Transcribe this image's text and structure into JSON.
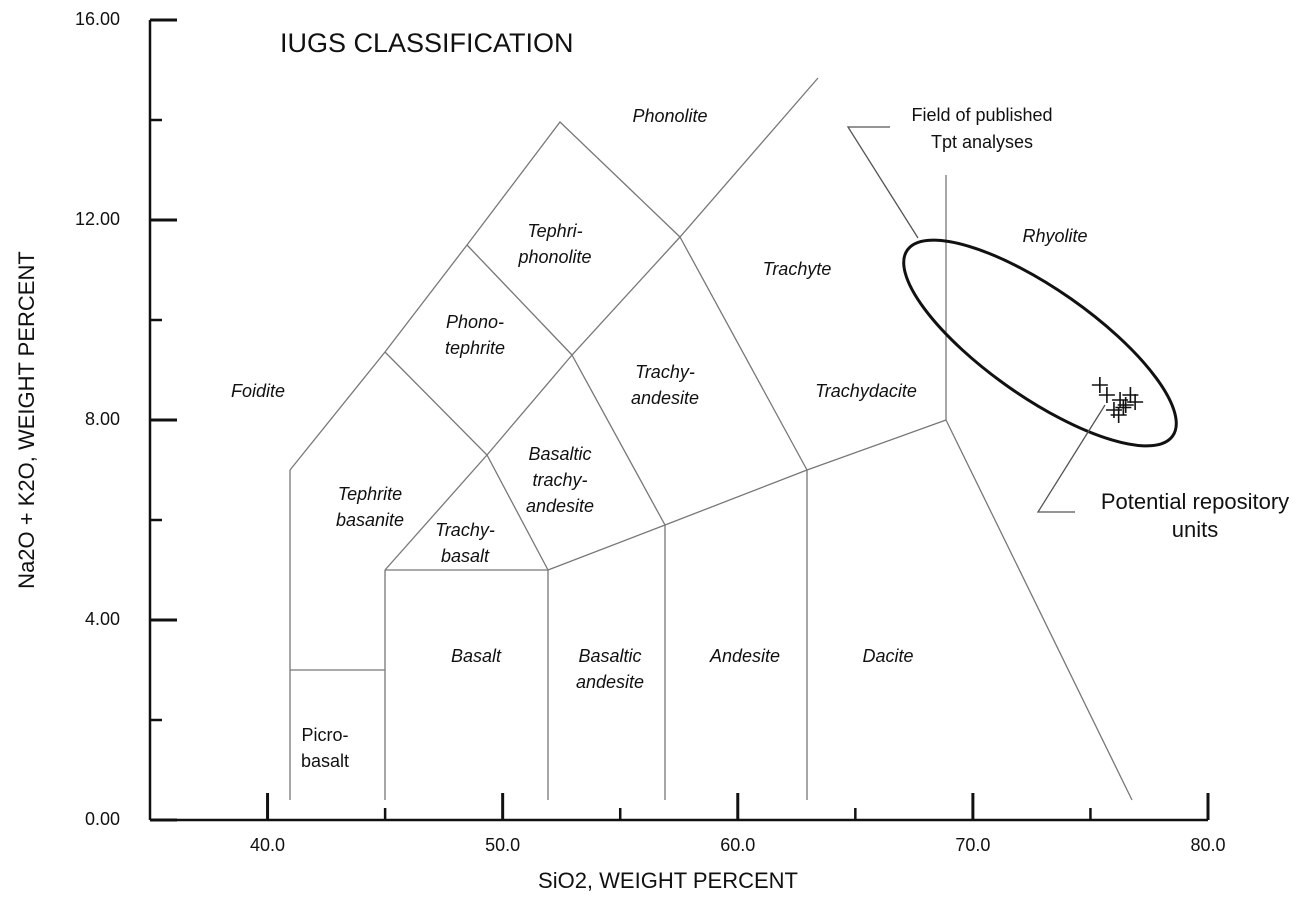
{
  "chart_data": {
    "type": "scatter",
    "title": "IUGS CLASSIFICATION",
    "x_label": "SiO2, WEIGHT PERCENT",
    "y_label": "Na2O + K2O, WEIGHT PERCENT",
    "xlim": [
      35,
      80
    ],
    "ylim": [
      0,
      16
    ],
    "xticks": [
      {
        "value": 40,
        "label": "40.0"
      },
      {
        "value": 50,
        "label": "50.0"
      },
      {
        "value": 60,
        "label": "60.0"
      },
      {
        "value": 70,
        "label": "70.0"
      },
      {
        "value": 80,
        "label": "80.0"
      }
    ],
    "xminor": [
      45,
      55,
      65,
      75
    ],
    "yticks": [
      {
        "value": 0,
        "label": "0.00"
      },
      {
        "value": 4,
        "label": "4.00"
      },
      {
        "value": 8,
        "label": "8.00"
      },
      {
        "value": 12,
        "label": "12.00"
      },
      {
        "value": 16,
        "label": "16.00"
      }
    ],
    "yminor": [
      2,
      6,
      10,
      14
    ],
    "series": [
      {
        "color": "#111111",
        "marker": "cross",
        "x": [
          75.4,
          75.7,
          76.0,
          76.26,
          76.5,
          76.7,
          76.9,
          76.2,
          76.4
        ],
        "values": [
          8.7,
          8.5,
          8.2,
          8.4,
          8.3,
          8.5,
          8.36,
          8.1,
          8.25
        ]
      }
    ],
    "fields": [
      {
        "lines": [
          "Phonolite"
        ],
        "italic": true
      },
      {
        "lines": [
          "Tephri-",
          "phonolite"
        ],
        "italic": true
      },
      {
        "lines": [
          "Phono-",
          "tephrite"
        ],
        "italic": true
      },
      {
        "lines": [
          "Foidite"
        ],
        "italic": true
      },
      {
        "lines": [
          "Trachy-",
          "andesite"
        ],
        "italic": true
      },
      {
        "lines": [
          "Trachyte"
        ],
        "italic": true
      },
      {
        "lines": [
          "Trachydacite"
        ],
        "italic": true
      },
      {
        "lines": [
          "Rhyolite"
        ],
        "italic": true
      },
      {
        "lines": [
          "Basaltic",
          "trachy-",
          "andesite"
        ],
        "italic": true
      },
      {
        "lines": [
          "Tephrite",
          "basanite"
        ],
        "italic": true
      },
      {
        "lines": [
          "Trachy-",
          "basalt"
        ],
        "italic": true
      },
      {
        "lines": [
          "Basalt"
        ],
        "italic": true
      },
      {
        "lines": [
          "Basaltic",
          "andesite"
        ],
        "italic": true
      },
      {
        "lines": [
          "Andesite"
        ],
        "italic": true
      },
      {
        "lines": [
          "Dacite"
        ],
        "italic": true
      },
      {
        "lines": [
          "Picro-",
          "basalt"
        ],
        "italic": false
      }
    ],
    "annotations": [
      {
        "lines": [
          "Field of published",
          "Tpt analyses"
        ]
      },
      {
        "lines": [
          "Potential repository",
          "units"
        ]
      }
    ]
  }
}
